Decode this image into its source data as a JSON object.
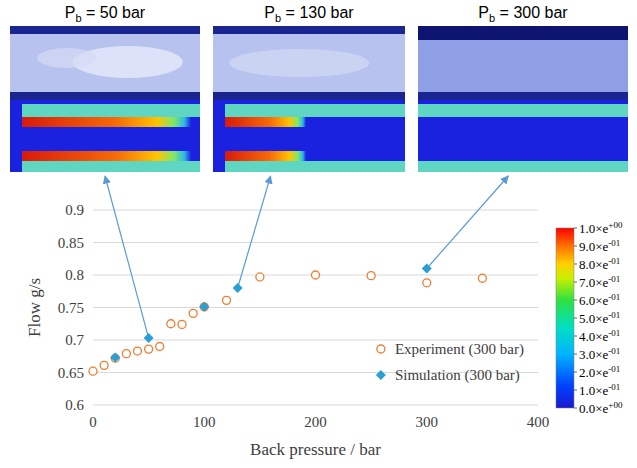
{
  "chart_data": {
    "type": "scatter",
    "x_label": "Back pressure / bar",
    "y_label": "Flow g/s",
    "xlim": [
      0,
      400
    ],
    "xticks": [
      0,
      100,
      200,
      300,
      400
    ],
    "ylim": [
      0.6,
      0.9
    ],
    "yticks": [
      0.6,
      0.65,
      0.7,
      0.75,
      0.8,
      0.85,
      0.9
    ],
    "grid": true,
    "legend": "lower right",
    "series": [
      {
        "name": "Experiment (300 bar)",
        "color": "#ed7d31",
        "marker": "circle-open",
        "x": [
          0,
          10,
          20,
          30,
          40,
          50,
          60,
          70,
          80,
          90,
          100,
          120,
          150,
          200,
          250,
          300,
          350
        ],
        "values": [
          0.652,
          0.661,
          0.672,
          0.679,
          0.683,
          0.686,
          0.69,
          0.725,
          0.724,
          0.741,
          0.751,
          0.761,
          0.797,
          0.8,
          0.799,
          0.788,
          0.795
        ]
      },
      {
        "name": "Simulation (300 bar)",
        "color": "#2a9fd6",
        "marker": "diamond",
        "x": [
          20,
          50,
          100,
          130,
          300
        ],
        "values": [
          0.673,
          0.703,
          0.751,
          0.78,
          0.81
        ]
      }
    ],
    "annotations": [
      {
        "text_main": "P",
        "subscript": "b",
        "text_rest": " = 50 bar",
        "x": 50,
        "y": 0.703
      },
      {
        "text_main": "P",
        "subscript": "b",
        "text_rest": " = 130 bar",
        "x": 130,
        "y": 0.78
      },
      {
        "text_main": "P",
        "subscript": "b",
        "text_rest": " = 300 bar",
        "x": 300,
        "y": 0.81
      }
    ],
    "colorbar": {
      "range": [
        0,
        1
      ],
      "ticks": [
        {
          "value": 1,
          "label": "1.0×e+00"
        },
        {
          "value": 0.9,
          "label": "9.0×e-01"
        },
        {
          "value": 0.8,
          "label": "8.0×e-01"
        },
        {
          "value": 0.7,
          "label": "7.0×e-01"
        },
        {
          "value": 0.6,
          "label": "6.0×e-01"
        },
        {
          "value": 0.5,
          "label": "5.0×e-01"
        },
        {
          "value": 0.4,
          "label": "4.0×e-01"
        },
        {
          "value": 0.3,
          "label": "3.0×e-01"
        },
        {
          "value": 0.2,
          "label": "2.0×e-01"
        },
        {
          "value": 0.1,
          "label": "1.0×e-01"
        },
        {
          "value": 0,
          "label": "0.0×e+00"
        }
      ]
    }
  }
}
